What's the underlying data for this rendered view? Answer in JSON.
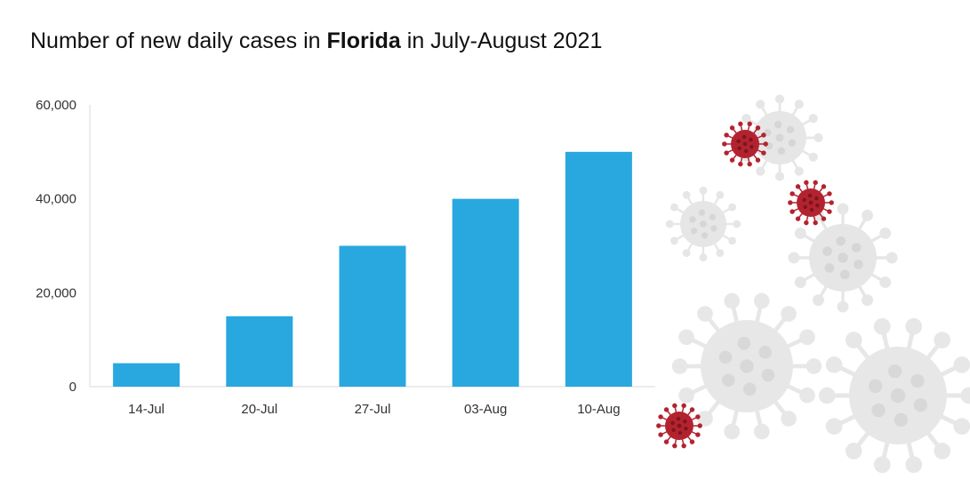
{
  "title": {
    "prefix": "Number of new daily cases in ",
    "highlight": "Florida",
    "suffix": " in July-August 2021"
  },
  "chart_data": {
    "type": "bar",
    "title": "Number of new daily cases in Florida in July-August 2021",
    "categories": [
      "14-Jul",
      "20-Jul",
      "27-Jul",
      "03-Aug",
      "10-Aug"
    ],
    "values": [
      5000,
      15000,
      30000,
      40000,
      50000
    ],
    "ylim": [
      0,
      60000
    ],
    "yticks": [
      0,
      20000,
      40000,
      60000
    ],
    "ytick_labels": [
      "0",
      "20,000",
      "40,000",
      "60,000"
    ],
    "xlabel": "",
    "ylabel": "",
    "grid": false,
    "bar_color": "#29a8e0"
  },
  "decoration": {
    "virus_red": "#b3232f",
    "virus_grey": "#e2e2e2",
    "icon": "coronavirus-icon"
  }
}
